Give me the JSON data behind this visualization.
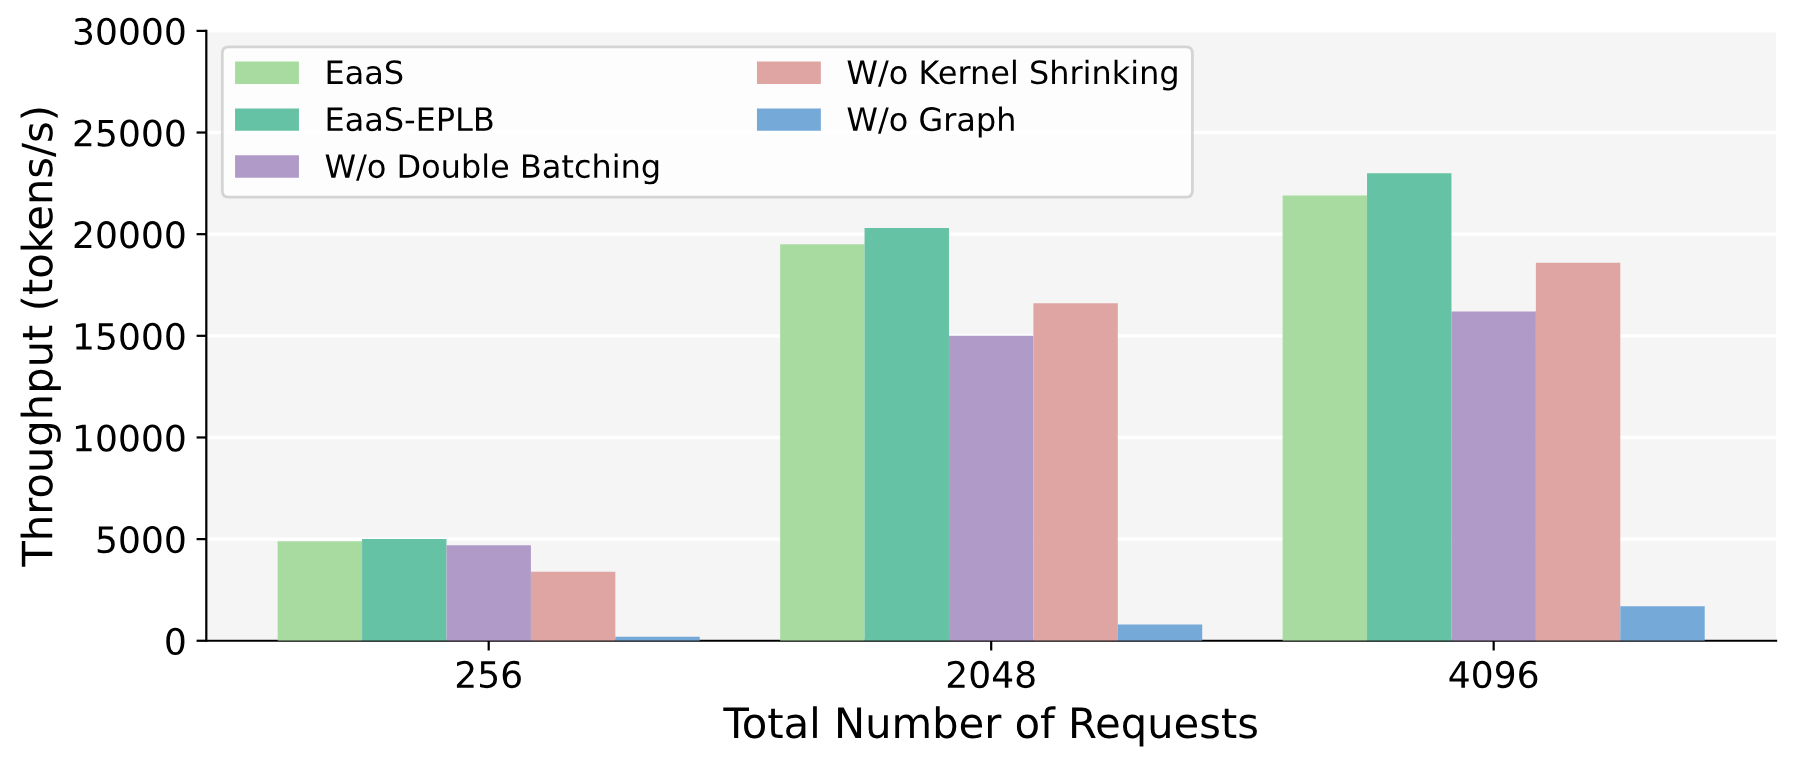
{
  "chart_data": {
    "type": "bar",
    "xlabel": "Total Number of Requests",
    "ylabel": "Throughput (tokens/s)",
    "categories": [
      "256",
      "2048",
      "4096"
    ],
    "series": [
      {
        "name": "EaaS",
        "color": "#a8dba0",
        "values": [
          4900,
          19500,
          21900
        ]
      },
      {
        "name": "EaaS-EPLB",
        "color": "#66c2a5",
        "values": [
          5000,
          20300,
          23000
        ]
      },
      {
        "name": "W/o Double Batching",
        "color": "#b09ac8",
        "values": [
          4700,
          15000,
          16200
        ]
      },
      {
        "name": "W/o Kernel Shrinking",
        "color": "#dfa5a3",
        "values": [
          3400,
          16600,
          18600
        ]
      },
      {
        "name": "W/o Graph",
        "color": "#74a9d8",
        "values": [
          200,
          800,
          1700
        ]
      }
    ],
    "ylim": [
      0,
      30000
    ],
    "yticks": [
      0,
      5000,
      10000,
      15000,
      20000,
      25000,
      30000
    ],
    "grid": "y",
    "legend": "top left"
  }
}
